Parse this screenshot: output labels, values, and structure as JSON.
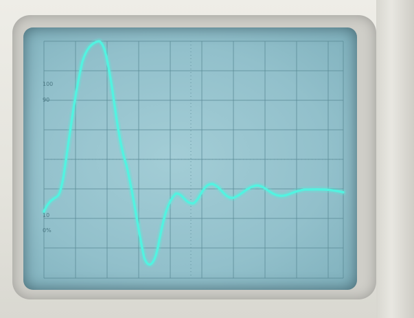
{
  "scene": {
    "device": "oscilloscope",
    "trace_color": "#4ff0dd",
    "screen_color": "#9cc8d2",
    "grid_color": "#5c8c98"
  },
  "graticule_labels": {
    "top": "100",
    "upper": "90",
    "lower": "10",
    "bottom": "0%"
  }
}
